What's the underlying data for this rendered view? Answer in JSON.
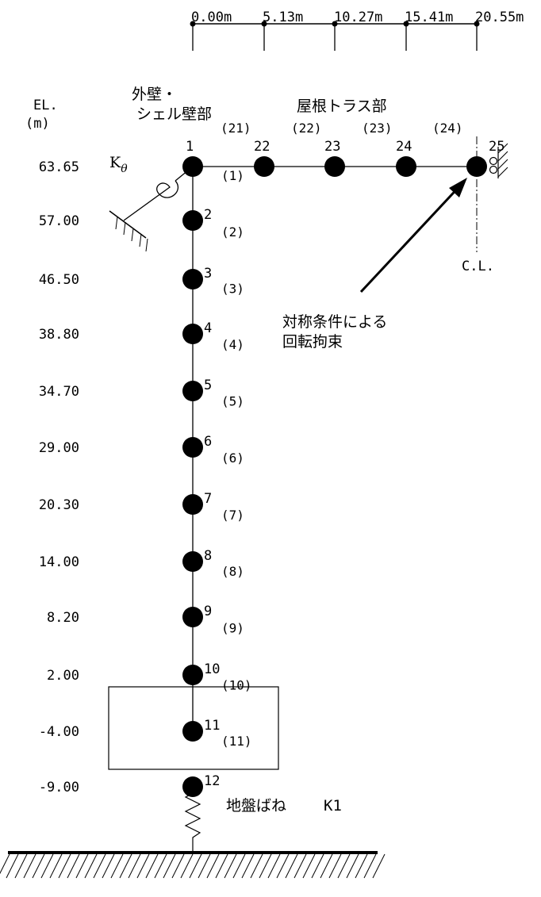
{
  "scale": {
    "labels": [
      "0.00m",
      "5.13m",
      "10.27m",
      "15.41m",
      "20.55m"
    ]
  },
  "elevation_header": {
    "line1": "EL.",
    "line2": "(m)"
  },
  "section_labels": {
    "wall_line1": "外壁・",
    "wall_line2": "シェル壁部",
    "roof": "屋根トラス部"
  },
  "column_nodes": [
    {
      "node": "1",
      "elevation": "63.65"
    },
    {
      "node": "2",
      "elevation": "57.00"
    },
    {
      "node": "3",
      "elevation": "46.50"
    },
    {
      "node": "4",
      "elevation": "38.80"
    },
    {
      "node": "5",
      "elevation": "34.70"
    },
    {
      "node": "6",
      "elevation": "29.00"
    },
    {
      "node": "7",
      "elevation": "20.30"
    },
    {
      "node": "8",
      "elevation": "14.00"
    },
    {
      "node": "9",
      "elevation": "8.20"
    },
    {
      "node": "10",
      "elevation": "2.00"
    },
    {
      "node": "11",
      "elevation": "-4.00"
    },
    {
      "node": "12",
      "elevation": "-9.00"
    }
  ],
  "column_elements": [
    "(1)",
    "(2)",
    "(3)",
    "(4)",
    "(5)",
    "(6)",
    "(7)",
    "(8)",
    "(9)",
    "(10)",
    "(11)"
  ],
  "roof_nodes": [
    "22",
    "23",
    "24",
    "25"
  ],
  "roof_elements": [
    "(21)",
    "(22)",
    "(23)",
    "(24)"
  ],
  "rotational_spring": {
    "symbol": "K",
    "subscript": "θ"
  },
  "centerline_label": "C.L.",
  "annotation": {
    "line1": "対称条件による",
    "line2": "回転拘束"
  },
  "ground_spring": {
    "label": "地盤ばね",
    "symbol": "K1"
  }
}
